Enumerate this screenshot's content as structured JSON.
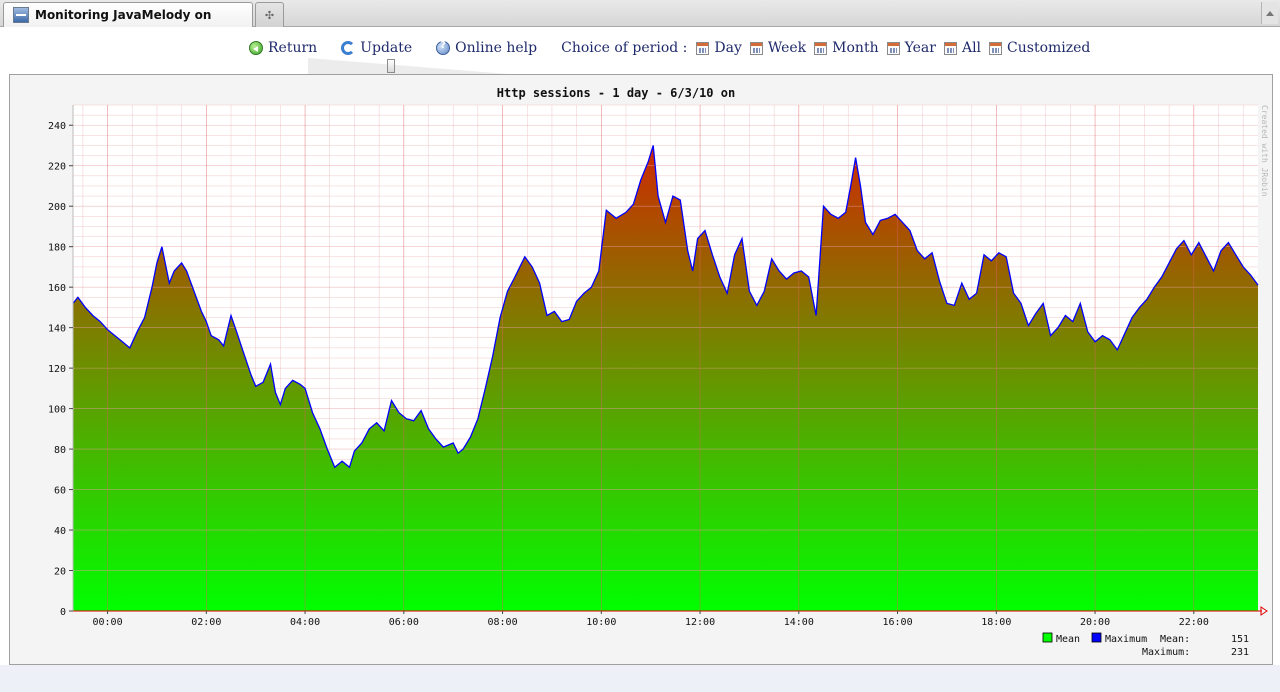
{
  "browser": {
    "tab_title": "Monitoring JavaMelody on",
    "tab_icon": "app-window-icon",
    "new_tab_icon": "new-tab-icon"
  },
  "toolbar": {
    "return_label": "Return",
    "update_label": "Update",
    "help_label": "Online help",
    "period_label": "Choice of period :",
    "day_label": "Day",
    "week_label": "Week",
    "month_label": "Month",
    "year_label": "Year",
    "all_label": "All",
    "custom_label": "Customized"
  },
  "slider": {
    "value": 0.4
  },
  "chart_data": {
    "type": "area",
    "title": "Http sessions - 1 day - 6/3/10 on",
    "watermark": "Created with JRobin",
    "x_ticks": [
      "00:00",
      "02:00",
      "04:00",
      "06:00",
      "08:00",
      "10:00",
      "12:00",
      "14:00",
      "16:00",
      "18:00",
      "20:00",
      "22:00"
    ],
    "x_start_hour": -0.7,
    "x_end_hour": 23.3,
    "ylim": [
      0,
      250
    ],
    "y_ticks": [
      0,
      20,
      40,
      60,
      80,
      100,
      120,
      140,
      160,
      180,
      200,
      220,
      240
    ],
    "grid": true,
    "legend_position": "bottom-right",
    "series": [
      {
        "name": "Mean",
        "color": "#00ff00",
        "role": "area-fill"
      },
      {
        "name": "Maximum",
        "color": "#0000ff",
        "role": "line"
      }
    ],
    "fill_colors": {
      "high": "#d02800",
      "low": "#00ff00"
    },
    "points": [
      [
        -0.7,
        152
      ],
      [
        -0.6,
        155
      ],
      [
        -0.45,
        150
      ],
      [
        -0.3,
        146
      ],
      [
        -0.15,
        143
      ],
      [
        0.0,
        139
      ],
      [
        0.15,
        136
      ],
      [
        0.3,
        133
      ],
      [
        0.45,
        130
      ],
      [
        0.6,
        138
      ],
      [
        0.75,
        145
      ],
      [
        0.9,
        160
      ],
      [
        1.0,
        172
      ],
      [
        1.1,
        180
      ],
      [
        1.25,
        162
      ],
      [
        1.35,
        168
      ],
      [
        1.5,
        172
      ],
      [
        1.6,
        168
      ],
      [
        1.75,
        158
      ],
      [
        1.9,
        148
      ],
      [
        2.0,
        143
      ],
      [
        2.1,
        136
      ],
      [
        2.25,
        134
      ],
      [
        2.35,
        131
      ],
      [
        2.5,
        146
      ],
      [
        2.6,
        139
      ],
      [
        2.75,
        128
      ],
      [
        2.9,
        117
      ],
      [
        3.0,
        111
      ],
      [
        3.15,
        113
      ],
      [
        3.3,
        122
      ],
      [
        3.4,
        108
      ],
      [
        3.5,
        102
      ],
      [
        3.6,
        110
      ],
      [
        3.75,
        114
      ],
      [
        3.9,
        112
      ],
      [
        4.0,
        110
      ],
      [
        4.15,
        98
      ],
      [
        4.3,
        90
      ],
      [
        4.45,
        80
      ],
      [
        4.6,
        71
      ],
      [
        4.75,
        74
      ],
      [
        4.9,
        71
      ],
      [
        5.0,
        79
      ],
      [
        5.15,
        83
      ],
      [
        5.3,
        90
      ],
      [
        5.45,
        93
      ],
      [
        5.6,
        89
      ],
      [
        5.75,
        104
      ],
      [
        5.9,
        98
      ],
      [
        6.05,
        95
      ],
      [
        6.2,
        94
      ],
      [
        6.35,
        99
      ],
      [
        6.5,
        90
      ],
      [
        6.65,
        85
      ],
      [
        6.8,
        81
      ],
      [
        7.0,
        83
      ],
      [
        7.1,
        78
      ],
      [
        7.2,
        80
      ],
      [
        7.35,
        86
      ],
      [
        7.5,
        95
      ],
      [
        7.65,
        110
      ],
      [
        7.8,
        126
      ],
      [
        7.95,
        145
      ],
      [
        8.1,
        158
      ],
      [
        8.25,
        165
      ],
      [
        8.45,
        175
      ],
      [
        8.6,
        170
      ],
      [
        8.75,
        162
      ],
      [
        8.9,
        146
      ],
      [
        9.05,
        148
      ],
      [
        9.2,
        143
      ],
      [
        9.35,
        144
      ],
      [
        9.5,
        153
      ],
      [
        9.65,
        157
      ],
      [
        9.8,
        160
      ],
      [
        9.95,
        168
      ],
      [
        10.1,
        198
      ],
      [
        10.3,
        194
      ],
      [
        10.5,
        197
      ],
      [
        10.65,
        201
      ],
      [
        10.8,
        213
      ],
      [
        10.95,
        222
      ],
      [
        11.05,
        230
      ],
      [
        11.15,
        205
      ],
      [
        11.3,
        192
      ],
      [
        11.45,
        205
      ],
      [
        11.6,
        203
      ],
      [
        11.75,
        178
      ],
      [
        11.85,
        168
      ],
      [
        11.95,
        184
      ],
      [
        12.1,
        188
      ],
      [
        12.25,
        176
      ],
      [
        12.4,
        165
      ],
      [
        12.55,
        157
      ],
      [
        12.7,
        176
      ],
      [
        12.85,
        184
      ],
      [
        13.0,
        158
      ],
      [
        13.15,
        151
      ],
      [
        13.3,
        158
      ],
      [
        13.45,
        174
      ],
      [
        13.6,
        168
      ],
      [
        13.75,
        164
      ],
      [
        13.9,
        167
      ],
      [
        14.05,
        168
      ],
      [
        14.2,
        165
      ],
      [
        14.35,
        146
      ],
      [
        14.5,
        200
      ],
      [
        14.65,
        196
      ],
      [
        14.8,
        194
      ],
      [
        14.95,
        197
      ],
      [
        15.05,
        210
      ],
      [
        15.15,
        224
      ],
      [
        15.25,
        210
      ],
      [
        15.35,
        192
      ],
      [
        15.5,
        186
      ],
      [
        15.65,
        193
      ],
      [
        15.8,
        194
      ],
      [
        15.95,
        196
      ],
      [
        16.1,
        192
      ],
      [
        16.25,
        188
      ],
      [
        16.4,
        178
      ],
      [
        16.55,
        174
      ],
      [
        16.7,
        177
      ],
      [
        16.85,
        163
      ],
      [
        17.0,
        152
      ],
      [
        17.15,
        151
      ],
      [
        17.3,
        162
      ],
      [
        17.45,
        154
      ],
      [
        17.6,
        157
      ],
      [
        17.75,
        176
      ],
      [
        17.9,
        173
      ],
      [
        18.05,
        177
      ],
      [
        18.2,
        175
      ],
      [
        18.35,
        157
      ],
      [
        18.5,
        152
      ],
      [
        18.65,
        141
      ],
      [
        18.8,
        147
      ],
      [
        18.95,
        152
      ],
      [
        19.1,
        136
      ],
      [
        19.25,
        140
      ],
      [
        19.4,
        146
      ],
      [
        19.55,
        143
      ],
      [
        19.7,
        152
      ],
      [
        19.85,
        138
      ],
      [
        20.0,
        133
      ],
      [
        20.15,
        136
      ],
      [
        20.3,
        134
      ],
      [
        20.45,
        129
      ],
      [
        20.6,
        137
      ],
      [
        20.75,
        145
      ],
      [
        20.9,
        150
      ],
      [
        21.05,
        154
      ],
      [
        21.2,
        160
      ],
      [
        21.35,
        165
      ],
      [
        21.5,
        172
      ],
      [
        21.65,
        179
      ],
      [
        21.8,
        183
      ],
      [
        21.95,
        176
      ],
      [
        22.1,
        182
      ],
      [
        22.25,
        175
      ],
      [
        22.4,
        168
      ],
      [
        22.55,
        178
      ],
      [
        22.7,
        182
      ],
      [
        22.85,
        176
      ],
      [
        23.0,
        170
      ],
      [
        23.15,
        166
      ],
      [
        23.3,
        161
      ]
    ],
    "legend": {
      "mean_label": "Mean",
      "max_label": "Maximum",
      "mean_stat_label": "Mean:",
      "mean_stat_value": "151",
      "max_stat_label": "Maximum:",
      "max_stat_value": "231"
    }
  }
}
